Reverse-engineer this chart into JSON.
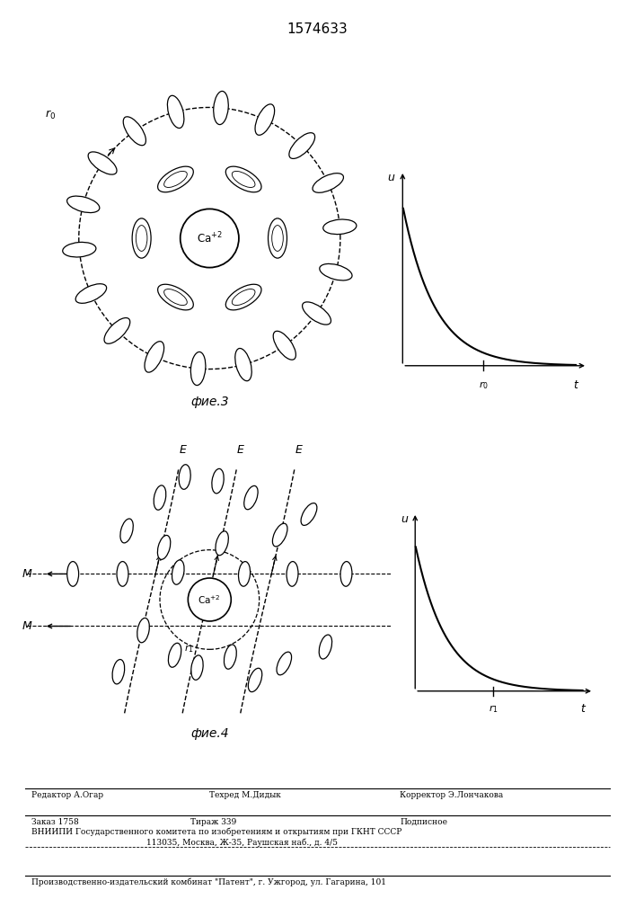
{
  "title": "1574633",
  "fig3_label": "фие.3",
  "fig4_label": "фие.4",
  "bg_color": "#ffffff",
  "line_color": "#000000",
  "footer_editor": "Редактор А.Огар",
  "footer_techred": "Техред М.Дидык",
  "footer_corrector": "Корректор Э.Лончакова",
  "footer_zakaz": "Заказ 1758",
  "footer_tirazh": "Тираж 339",
  "footer_podp": "Подписное",
  "footer_vniip": "ВНИИПИ Государственного комитета по изобретениям и открытиям при ГКНТ СССР",
  "footer_addr": "113035, Москва, Ж-35, Раушская наб., д. 4/5",
  "footer_patent": "Производственно-издательский комбинат \"Патент\", г. Ужгород, ул. Гагарина, 101"
}
